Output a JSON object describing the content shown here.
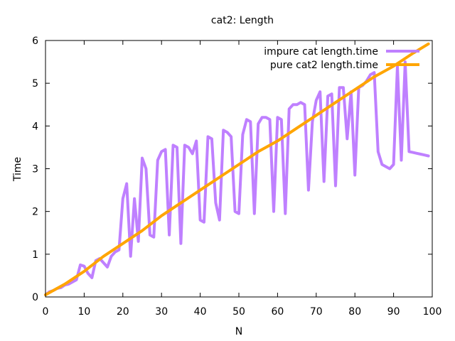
{
  "chart_data": {
    "type": "line",
    "title": "cat2: Length",
    "xlabel": "N",
    "ylabel": "Time",
    "xlim": [
      0,
      100
    ],
    "ylim": [
      0,
      6
    ],
    "xticks": [
      "0",
      "10",
      "20",
      "30",
      "40",
      "50",
      "60",
      "70",
      "80",
      "90",
      "100"
    ],
    "yticks": [
      "0",
      "1",
      "2",
      "3",
      "4",
      "5",
      "6"
    ],
    "grid": false,
    "legend": "top-right",
    "series": [
      {
        "name": "impure cat length.time",
        "color": "#bf80ff",
        "x": [
          0,
          1,
          2,
          3,
          4,
          5,
          6,
          7,
          8,
          9,
          10,
          11,
          12,
          13,
          14,
          15,
          16,
          17,
          18,
          19,
          20,
          21,
          22,
          23,
          24,
          25,
          26,
          27,
          28,
          29,
          30,
          31,
          32,
          33,
          34,
          35,
          36,
          37,
          38,
          39,
          40,
          41,
          42,
          43,
          44,
          45,
          46,
          47,
          48,
          49,
          50,
          51,
          52,
          53,
          54,
          55,
          56,
          57,
          58,
          59,
          60,
          61,
          62,
          63,
          64,
          65,
          66,
          67,
          68,
          69,
          70,
          71,
          72,
          73,
          74,
          75,
          76,
          77,
          78,
          79,
          80,
          81,
          82,
          83,
          84,
          85,
          86,
          87,
          88,
          89,
          90,
          91,
          92,
          93,
          94,
          95,
          96,
          97,
          98,
          99
        ],
        "y": [
          0.05,
          0.12,
          0.15,
          0.2,
          0.22,
          0.28,
          0.3,
          0.35,
          0.4,
          0.75,
          0.72,
          0.55,
          0.45,
          0.85,
          0.9,
          0.8,
          0.7,
          0.95,
          1.05,
          1.1,
          2.3,
          2.65,
          0.95,
          2.3,
          1.3,
          3.25,
          3.0,
          1.45,
          1.4,
          3.2,
          3.4,
          3.45,
          1.45,
          3.55,
          3.5,
          1.25,
          3.55,
          3.5,
          3.35,
          3.65,
          1.8,
          1.75,
          3.75,
          3.7,
          2.2,
          1.8,
          3.9,
          3.85,
          3.75,
          2.0,
          1.95,
          3.8,
          4.15,
          4.1,
          1.95,
          4.05,
          4.2,
          4.2,
          4.15,
          2.0,
          4.2,
          4.15,
          1.95,
          4.4,
          4.5,
          4.5,
          4.55,
          4.5,
          2.5,
          4.1,
          4.6,
          4.8,
          2.7,
          4.7,
          4.75,
          2.6,
          4.9,
          4.9,
          3.7,
          4.8,
          2.85,
          4.9,
          4.95,
          5.05,
          5.2,
          5.25,
          3.4,
          3.1,
          3.05,
          3.0,
          3.1,
          5.4,
          3.2,
          5.5,
          3.4,
          3.38,
          3.36,
          3.34,
          3.32,
          3.3
        ]
      },
      {
        "name": "pure cat2 length.time",
        "color": "#ffa500",
        "x": [
          0,
          5,
          10,
          15,
          20,
          25,
          30,
          35,
          40,
          45,
          50,
          55,
          60,
          65,
          70,
          75,
          80,
          85,
          90,
          95,
          99
        ],
        "y": [
          0.05,
          0.3,
          0.6,
          0.95,
          1.25,
          1.55,
          1.9,
          2.2,
          2.5,
          2.8,
          3.1,
          3.4,
          3.65,
          3.95,
          4.25,
          4.55,
          4.85,
          5.15,
          5.4,
          5.7,
          5.92
        ]
      }
    ]
  }
}
